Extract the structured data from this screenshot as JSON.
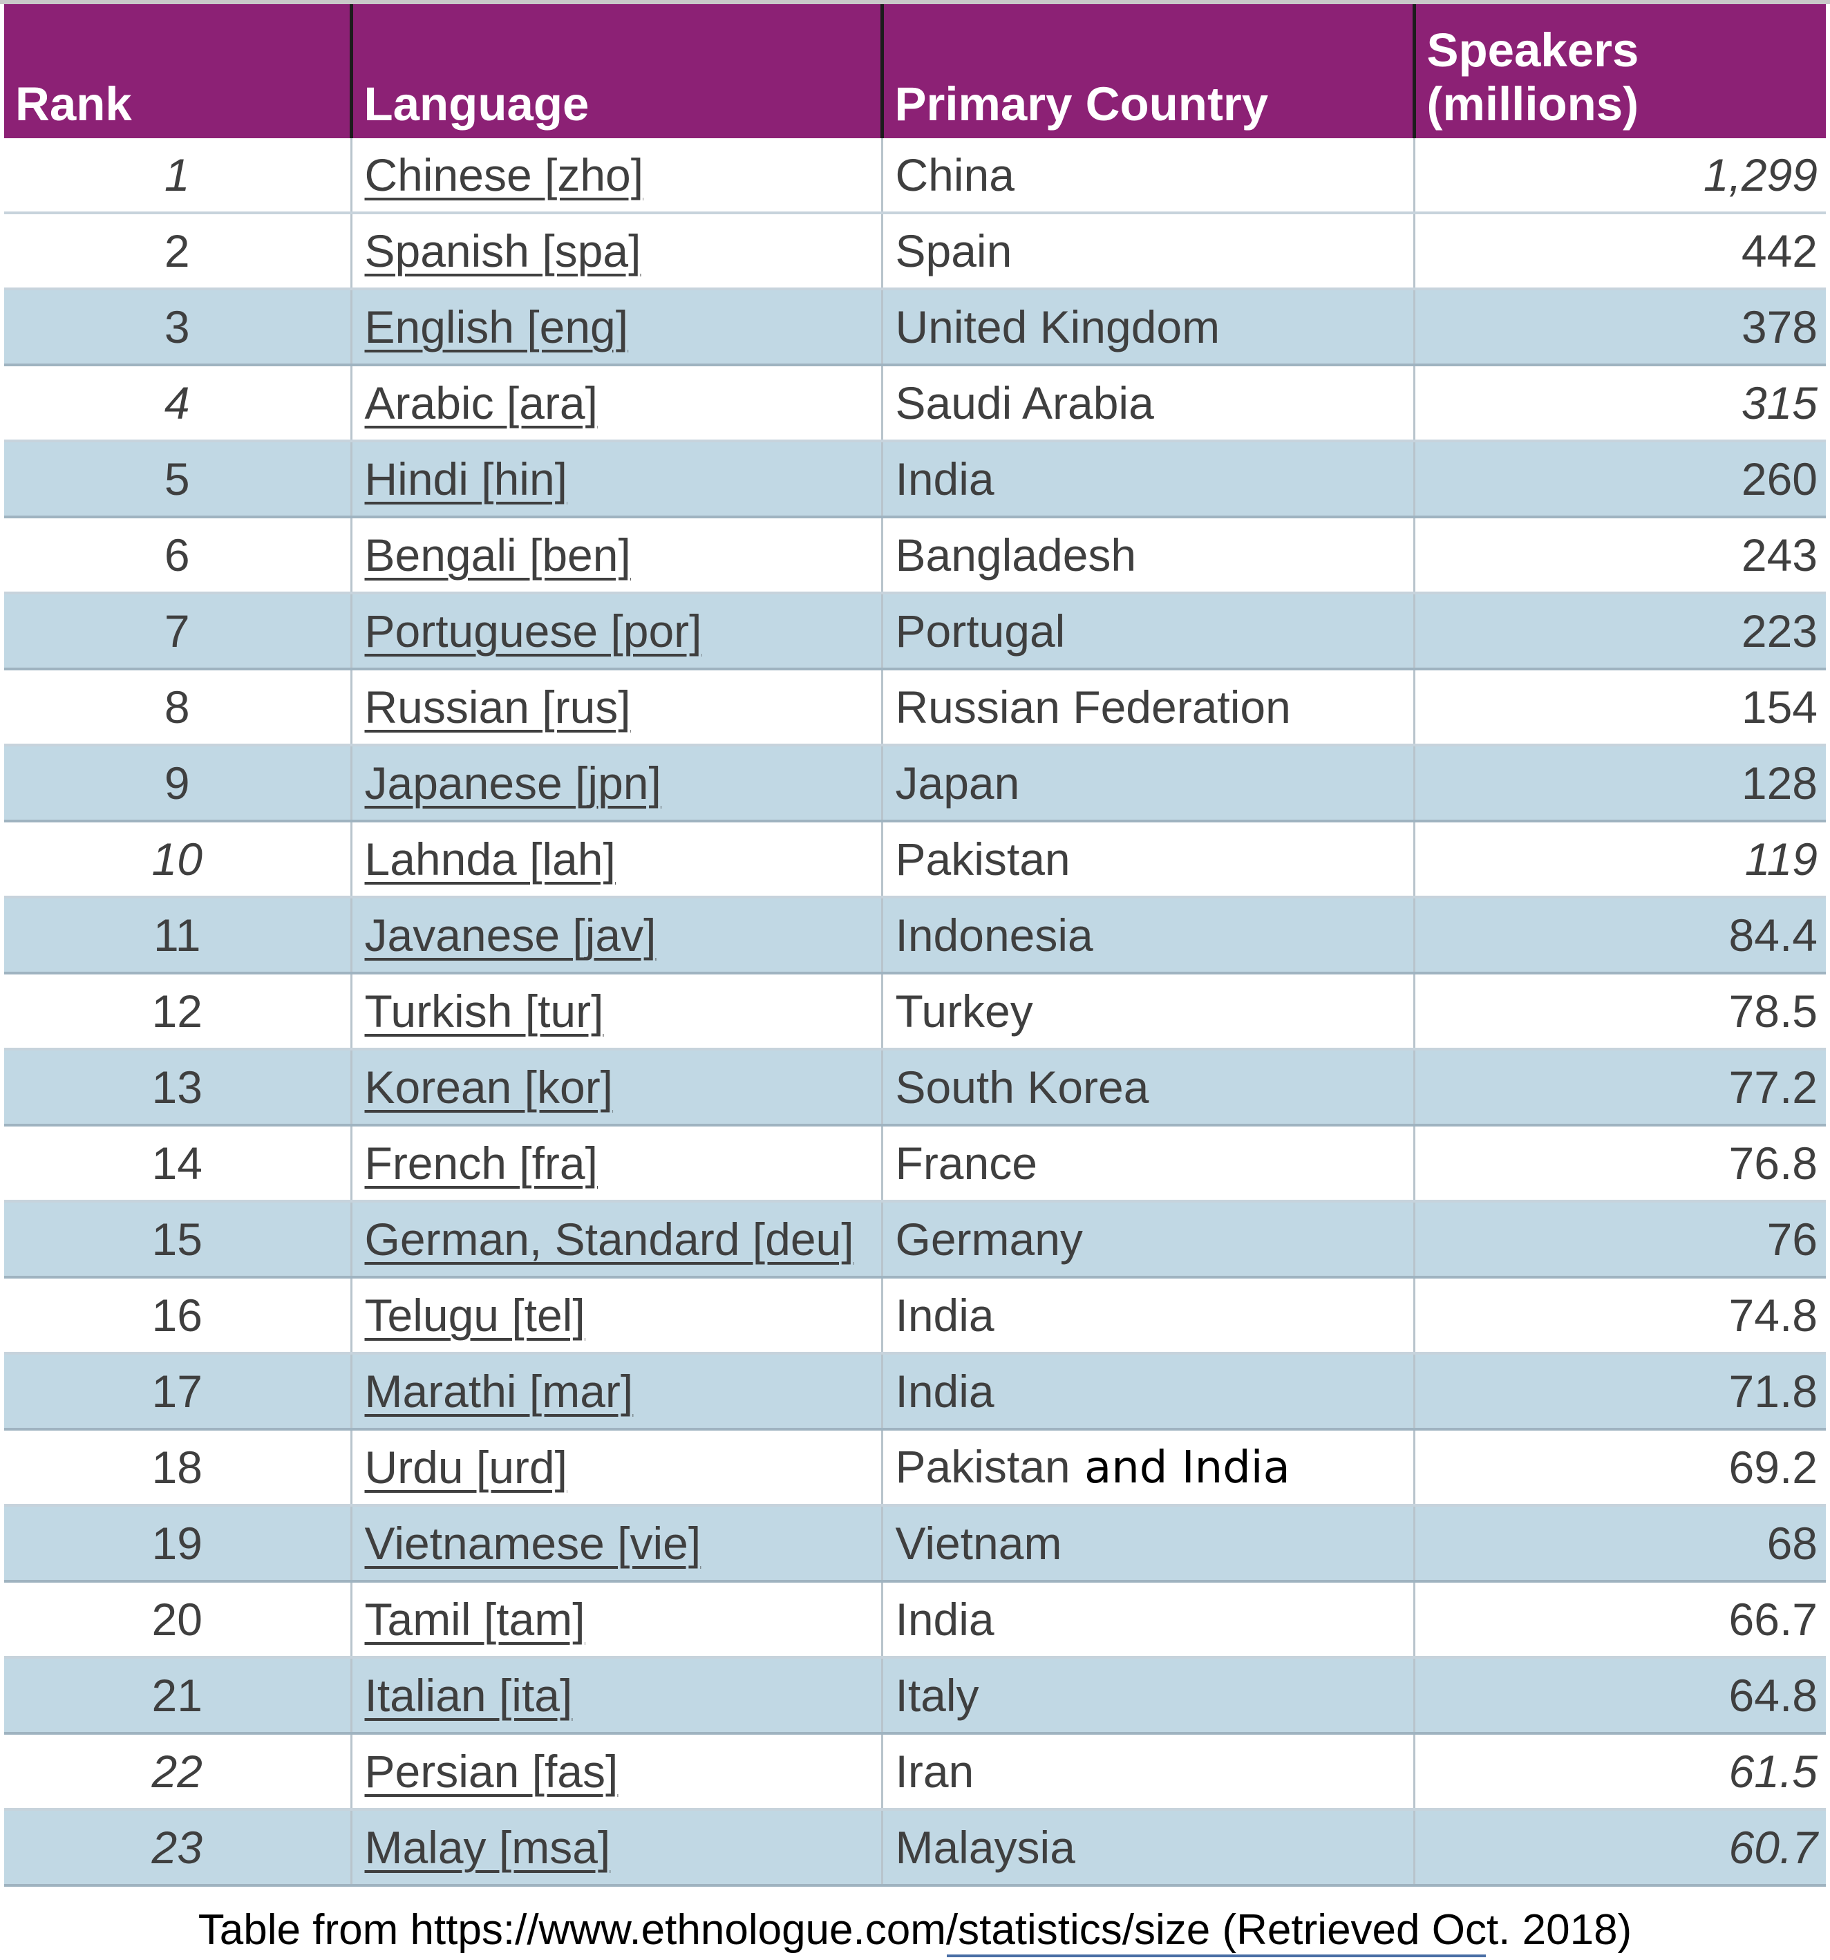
{
  "columns": {
    "rank": "Rank",
    "language": "Language",
    "country": "Primary Country",
    "speakers": "Speakers (millions)"
  },
  "rows": [
    {
      "rank": "1",
      "language": "Chinese [zho]",
      "country": "China",
      "speakers": "1,299",
      "italic": true
    },
    {
      "rank": "2",
      "language": "Spanish [spa]",
      "country": "Spain",
      "speakers": "442",
      "italic": false
    },
    {
      "rank": "3",
      "language": "English [eng]",
      "country": "United Kingdom",
      "speakers": "378",
      "italic": false
    },
    {
      "rank": "4",
      "language": "Arabic [ara]",
      "country": "Saudi Arabia",
      "speakers": "315",
      "italic": true
    },
    {
      "rank": "5",
      "language": "Hindi [hin]",
      "country": "India",
      "speakers": "260",
      "italic": false
    },
    {
      "rank": "6",
      "language": "Bengali [ben]",
      "country": "Bangladesh",
      "speakers": "243",
      "italic": false
    },
    {
      "rank": "7",
      "language": "Portuguese [por]",
      "country": "Portugal",
      "speakers": "223",
      "italic": false
    },
    {
      "rank": "8",
      "language": "Russian [rus]",
      "country": "Russian Federation",
      "speakers": "154",
      "italic": false
    },
    {
      "rank": "9",
      "language": "Japanese [jpn]",
      "country": "Japan",
      "speakers": "128",
      "italic": false
    },
    {
      "rank": "10",
      "language": "Lahnda [lah]",
      "country": "Pakistan",
      "speakers": "119",
      "italic": true
    },
    {
      "rank": "11",
      "language": "Javanese [jav]",
      "country": "Indonesia",
      "speakers": "84.4",
      "italic": false
    },
    {
      "rank": "12",
      "language": "Turkish [tur]",
      "country": "Turkey",
      "speakers": "78.5",
      "italic": false
    },
    {
      "rank": "13",
      "language": "Korean [kor]",
      "country": "South Korea",
      "speakers": "77.2",
      "italic": false
    },
    {
      "rank": "14",
      "language": "French [fra]",
      "country": "France",
      "speakers": "76.8",
      "italic": false
    },
    {
      "rank": "15",
      "language": "German, Standard [deu]",
      "country": "Germany",
      "speakers": "76",
      "italic": false
    },
    {
      "rank": "16",
      "language": "Telugu [tel]",
      "country": "India",
      "speakers": "74.8",
      "italic": false
    },
    {
      "rank": "17",
      "language": "Marathi [mar]",
      "country": "India",
      "speakers": "71.8",
      "italic": false
    },
    {
      "rank": "18",
      "language": "Urdu [urd]",
      "country": "Pakistan",
      "country_extra": " and India",
      "speakers": "69.2",
      "italic": false
    },
    {
      "rank": "19",
      "language": "Vietnamese [vie]",
      "country": "Vietnam",
      "speakers": "68",
      "italic": false
    },
    {
      "rank": "20",
      "language": "Tamil [tam]",
      "country": "India",
      "speakers": "66.7",
      "italic": false
    },
    {
      "rank": "21",
      "language": "Italian [ita]",
      "country": "Italy",
      "speakers": "64.8",
      "italic": false
    },
    {
      "rank": "22",
      "language": "Persian [fas]",
      "country": "Iran",
      "speakers": "61.5",
      "italic": true
    },
    {
      "rank": "23",
      "language": "Malay [msa]",
      "country": "Malaysia",
      "speakers": "60.7",
      "italic": true
    }
  ],
  "banded_rows": [
    3,
    5,
    7,
    9,
    11,
    13,
    15,
    17,
    19,
    21,
    23
  ],
  "source_note": "Table from https://www.ethnologue.com/statistics/size (Retrieved Oct. 2018)",
  "colors": {
    "header_bg": "#8c2175",
    "band_bg": "#c1d8e4",
    "text": "#3f3f3f"
  }
}
